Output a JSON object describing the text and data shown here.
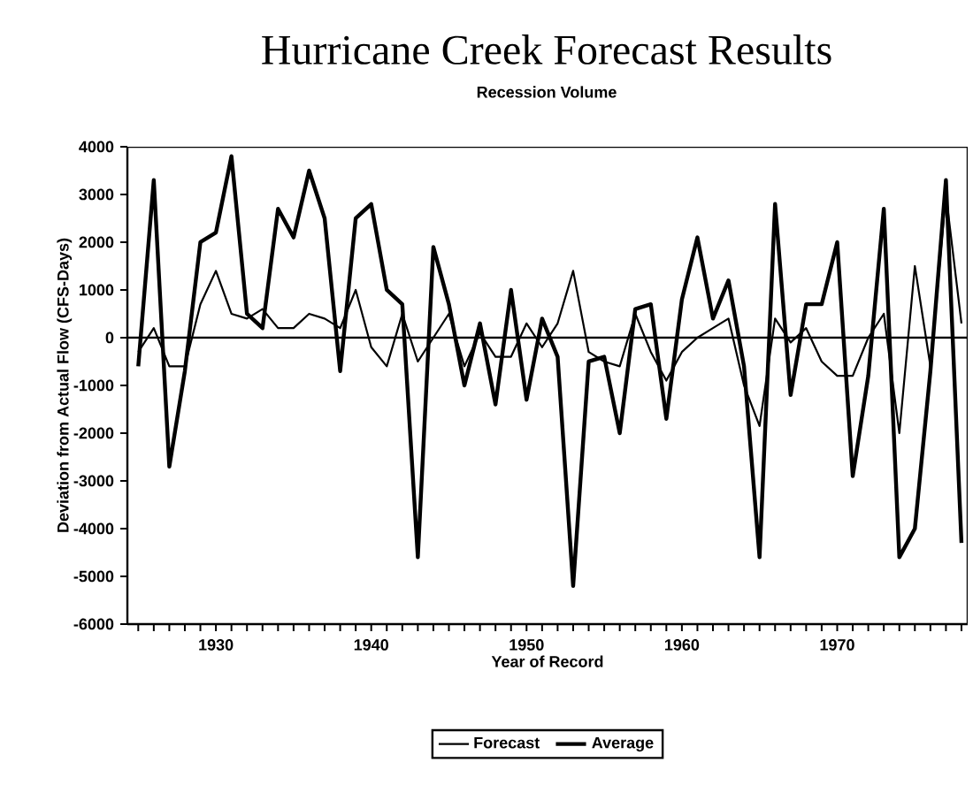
{
  "chart_data": {
    "type": "line",
    "title": "Hurricane Creek Forecast Results",
    "subtitle": "Recession Volume",
    "xlabel": "Year of Record",
    "ylabel": "Deviation from Actual Flow (CFS-Days)",
    "x": [
      1925,
      1926,
      1927,
      1928,
      1929,
      1930,
      1931,
      1932,
      1933,
      1934,
      1935,
      1936,
      1937,
      1938,
      1939,
      1940,
      1941,
      1942,
      1943,
      1944,
      1945,
      1946,
      1947,
      1948,
      1949,
      1950,
      1951,
      1952,
      1953,
      1954,
      1955,
      1956,
      1957,
      1958,
      1959,
      1960,
      1961,
      1962,
      1963,
      1964,
      1965,
      1966,
      1967,
      1968,
      1969,
      1970,
      1971,
      1972,
      1973,
      1974,
      1975,
      1976,
      1977,
      1978
    ],
    "series": [
      {
        "name": "Forecast",
        "color": "#000000",
        "values": [
          -300,
          200,
          -600,
          -600,
          700,
          1400,
          500,
          400,
          600,
          200,
          200,
          500,
          400,
          200,
          1000,
          -200,
          -600,
          500,
          -500,
          0,
          500,
          -600,
          100,
          -400,
          -400,
          300,
          -200,
          300,
          1400,
          -300,
          -500,
          -600,
          500,
          -300,
          -900,
          -300,
          0,
          200,
          400,
          -1000,
          -1850,
          400,
          -100,
          200,
          -500,
          -800,
          -800,
          0,
          500,
          -2000,
          1500,
          -600,
          3000,
          300
        ]
      },
      {
        "name": "Average",
        "color": "#000000",
        "values": [
          -600,
          3300,
          -2700,
          -700,
          2000,
          2200,
          3800,
          500,
          200,
          2700,
          2100,
          3500,
          2500,
          -700,
          2500,
          2800,
          1000,
          700,
          -4600,
          1900,
          700,
          -1000,
          300,
          -1400,
          1000,
          -1300,
          400,
          -400,
          -5200,
          -500,
          -400,
          -2000,
          600,
          700,
          -1700,
          800,
          2100,
          400,
          1200,
          -600,
          -4600,
          2800,
          -1200,
          700,
          700,
          2000,
          -2900,
          -800,
          2700,
          -4600,
          -4000,
          -700,
          3300,
          -4300
        ]
      }
    ],
    "xlim": [
      1924.3,
      1978.4
    ],
    "xticks": [
      {
        "value": 1925,
        "label": null
      },
      {
        "value": 1926,
        "label": null
      },
      {
        "value": 1927,
        "label": null
      },
      {
        "value": 1928,
        "label": null
      },
      {
        "value": 1929,
        "label": null
      },
      1930,
      {
        "value": 1931,
        "label": null
      },
      {
        "value": 1932,
        "label": null
      },
      {
        "value": 1933,
        "label": null
      },
      {
        "value": 1934,
        "label": null
      },
      {
        "value": 1935,
        "label": null
      },
      {
        "value": 1936,
        "label": null
      },
      {
        "value": 1937,
        "label": null
      },
      {
        "value": 1938,
        "label": null
      },
      {
        "value": 1939,
        "label": null
      },
      1940,
      {
        "value": 1941,
        "label": null
      },
      {
        "value": 1942,
        "label": null
      },
      {
        "value": 1943,
        "label": null
      },
      {
        "value": 1944,
        "label": null
      },
      {
        "value": 1945,
        "label": null
      },
      {
        "value": 1946,
        "label": null
      },
      {
        "value": 1947,
        "label": null
      },
      {
        "value": 1948,
        "label": null
      },
      {
        "value": 1949,
        "label": null
      },
      1950,
      {
        "value": 1951,
        "label": null
      },
      {
        "value": 1952,
        "label": null
      },
      {
        "value": 1953,
        "label": null
      },
      {
        "value": 1954,
        "label": null
      },
      {
        "value": 1955,
        "label": null
      },
      {
        "value": 1956,
        "label": null
      },
      {
        "value": 1957,
        "label": null
      },
      {
        "value": 1958,
        "label": null
      },
      {
        "value": 1959,
        "label": null
      },
      1960,
      {
        "value": 1961,
        "label": null
      },
      {
        "value": 1962,
        "label": null
      },
      {
        "value": 1963,
        "label": null
      },
      {
        "value": 1964,
        "label": null
      },
      {
        "value": 1965,
        "label": null
      },
      {
        "value": 1966,
        "label": null
      },
      {
        "value": 1967,
        "label": null
      },
      {
        "value": 1968,
        "label": null
      },
      {
        "value": 1969,
        "label": null
      },
      1970,
      {
        "value": 1971,
        "label": null
      },
      {
        "value": 1972,
        "label": null
      },
      {
        "value": 1973,
        "label": null
      },
      {
        "value": 1974,
        "label": null
      },
      {
        "value": 1975,
        "label": null
      },
      {
        "value": 1976,
        "label": null
      },
      {
        "value": 1977,
        "label": null
      },
      {
        "value": 1978,
        "label": null
      }
    ],
    "ylim": [
      -6000,
      4000
    ],
    "yticks": [
      -6000,
      -5000,
      -4000,
      -3000,
      -2000,
      -1000,
      0,
      1000,
      2000,
      3000,
      4000
    ],
    "ref_lines": [
      {
        "axis": "y",
        "value": 0
      }
    ],
    "grid": false,
    "legend": "bottom",
    "marker": "none",
    "line_style": "solid"
  }
}
